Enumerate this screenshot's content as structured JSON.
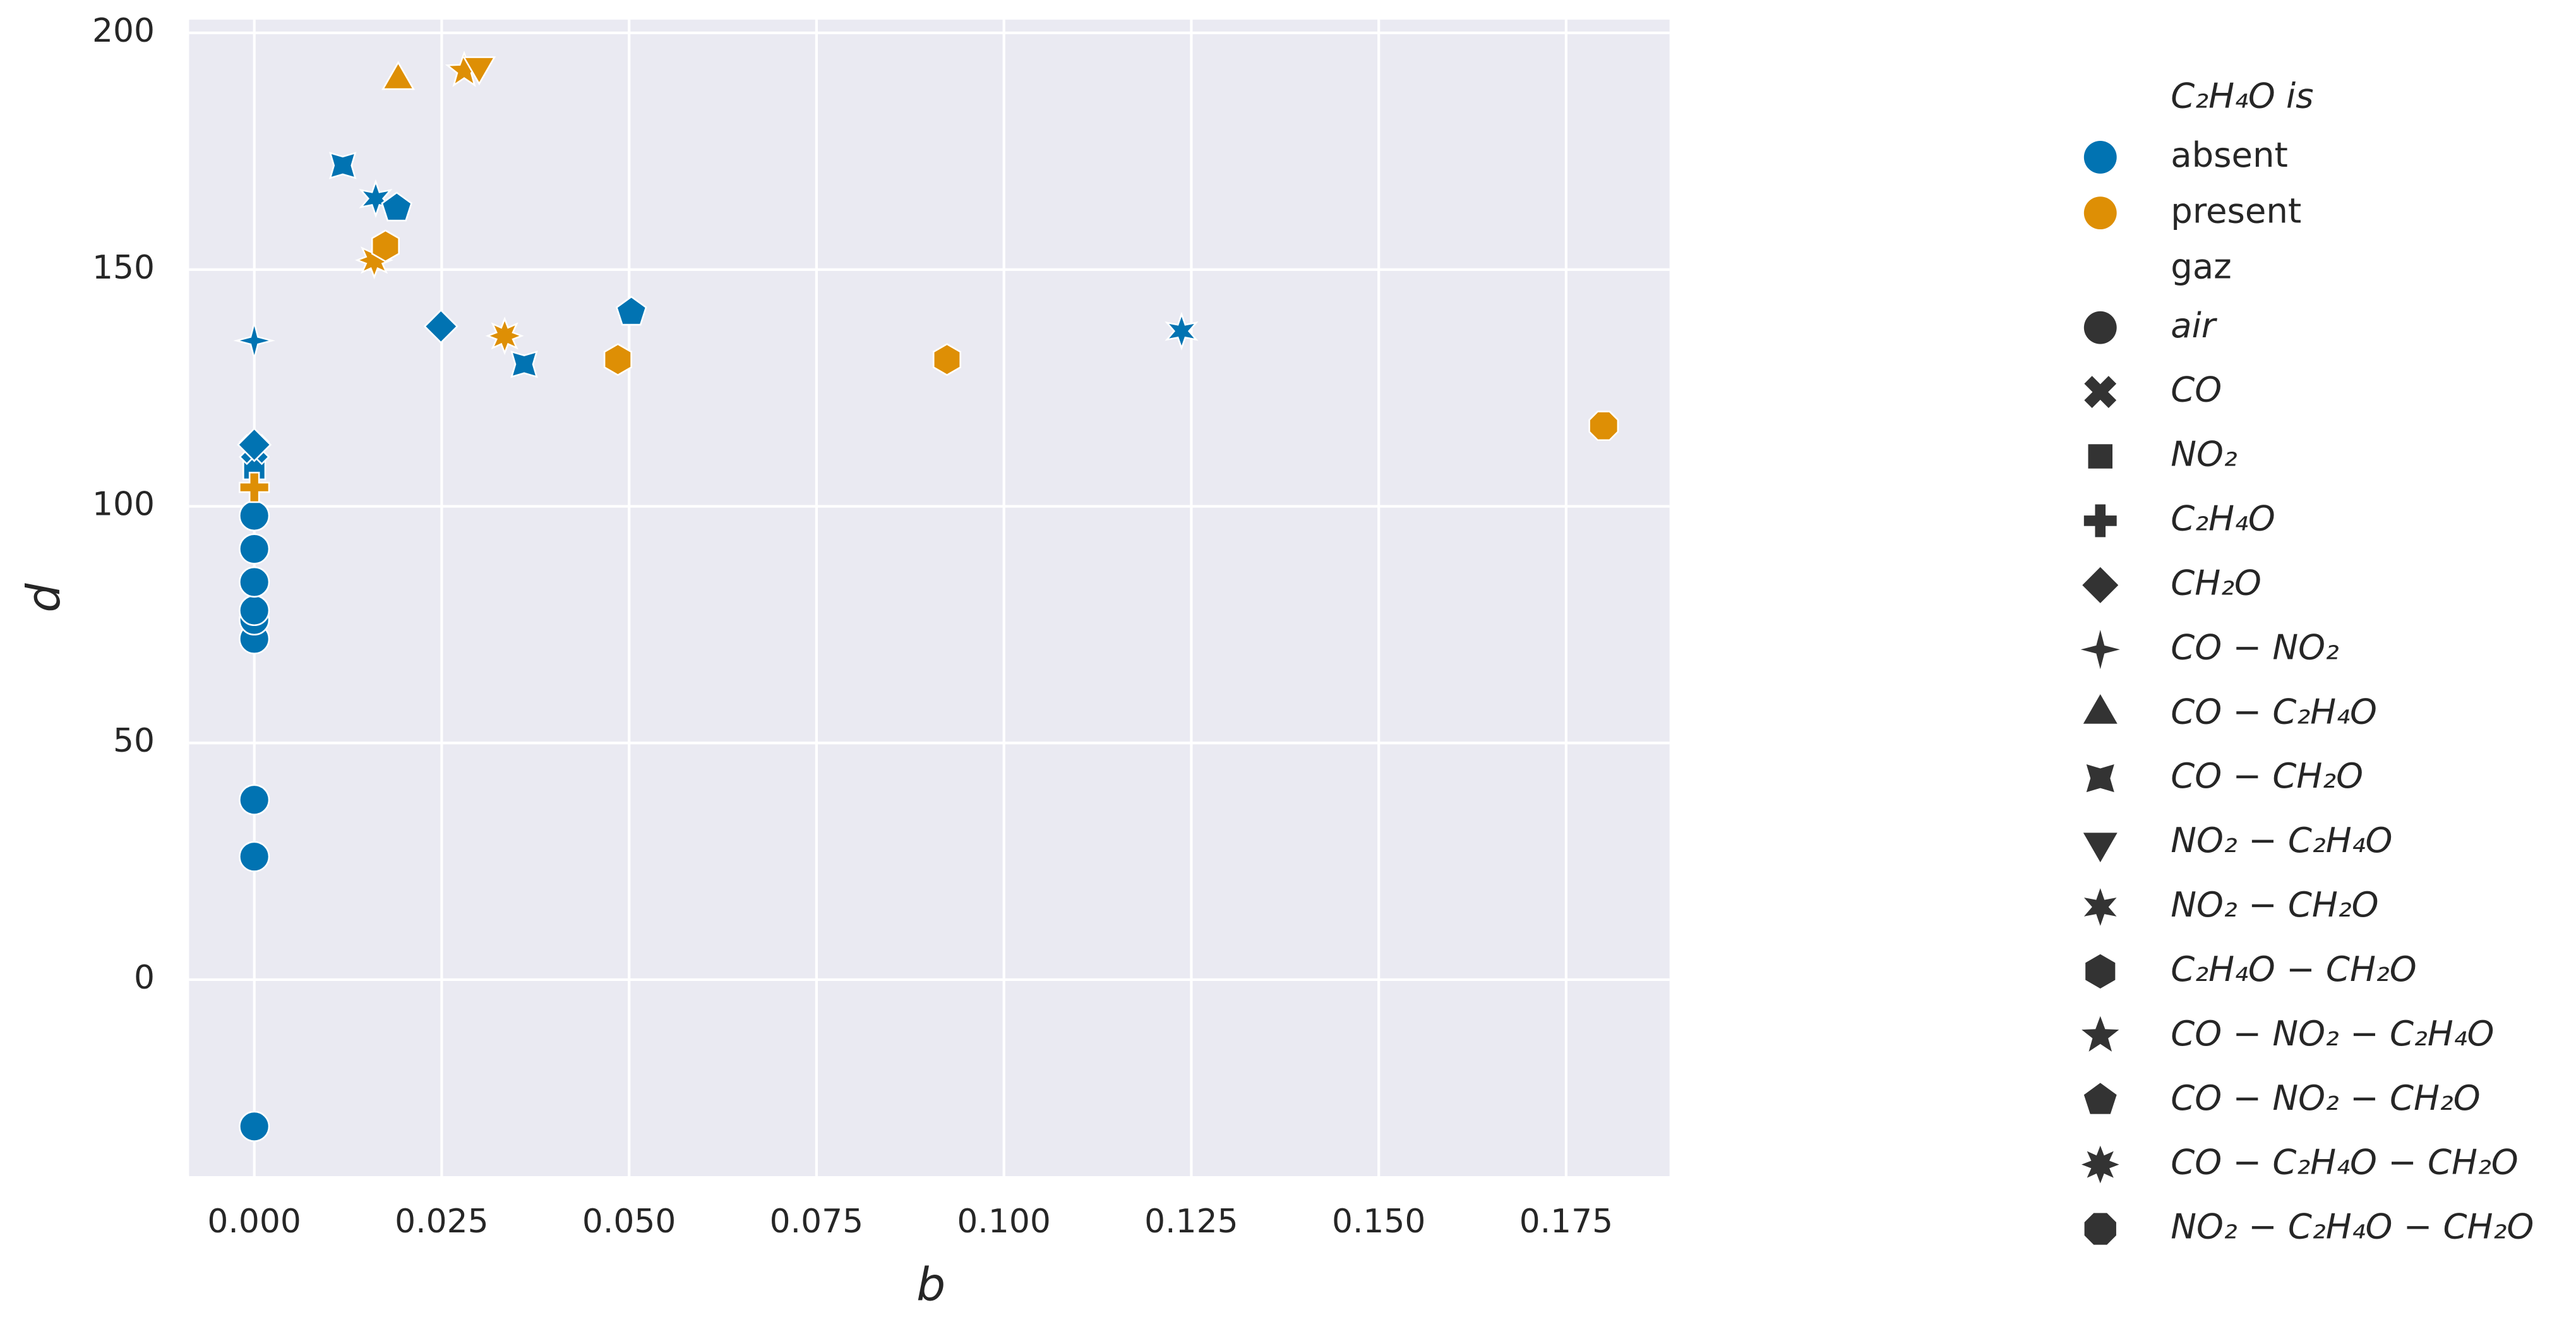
{
  "chart_data": {
    "type": "scatter",
    "x_label": "b",
    "y_label": "d",
    "xlim": [
      -0.0087,
      0.1888
    ],
    "ylim": [
      -41.5,
      202.8
    ],
    "xticks": [
      {
        "value": 0,
        "label": "0.000"
      },
      {
        "value": 0.025,
        "label": "0.025"
      },
      {
        "value": 0.05,
        "label": "0.050"
      },
      {
        "value": 0.075,
        "label": "0.075"
      },
      {
        "value": 0.1,
        "label": "0.100"
      },
      {
        "value": 0.125,
        "label": "0.125"
      },
      {
        "value": 0.15,
        "label": "0.150"
      },
      {
        "value": 0.175,
        "label": "0.175"
      }
    ],
    "yticks": [
      0,
      50,
      100,
      150,
      200
    ],
    "grid": true,
    "legend": {
      "position": "outside right",
      "hue_title": "C₂H₄O is",
      "style_title": "gaz",
      "styles": [
        "air",
        "CO",
        "NO₂",
        "C₂H₄O",
        "CH₂O",
        "CO − NO₂",
        "CO − C₂H₄O",
        "CO − CH₂O",
        "NO₂ − C₂H₄O",
        "NO₂ − CH₂O",
        "C₂H₄O − CH₂O",
        "CO − NO₂ − C₂H₄O",
        "CO − NO₂ − CH₂O",
        "CO − C₂H₄O − CH₂O",
        "NO₂ − C₂H₄O − CH₂O"
      ]
    },
    "series": [
      {
        "name": "absent",
        "color": "#0173b2",
        "x": [
          0,
          0,
          0,
          0,
          0,
          0,
          0,
          0,
          0,
          0,
          0,
          0,
          0,
          0.0118,
          0.0162,
          0.019,
          0.0249,
          0.036,
          0.0503,
          0.1237
        ],
        "values": [
          -31,
          26,
          38,
          72,
          76,
          78,
          84,
          91,
          98,
          108,
          112,
          113,
          135,
          172,
          165,
          163,
          138,
          130,
          141,
          137
        ],
        "gaz": [
          "air",
          "air",
          "air",
          "air",
          "air",
          "air",
          "air",
          "air",
          "air",
          "NO₂",
          "CO",
          "CH₂O",
          "CO − NO₂",
          "CO − CH₂O",
          "NO₂ − CH₂O",
          "CO − NO₂ − CH₂O",
          "CH₂O",
          "CO − CH₂O",
          "CO − NO₂ − CH₂O",
          "NO₂ − CH₂O"
        ]
      },
      {
        "name": "present",
        "color": "#de8f05",
        "x": [
          0,
          0.0192,
          0.028,
          0.03,
          0.016,
          0.0175,
          0.0334,
          0.0485,
          0.0924,
          0.18
        ],
        "values": [
          104,
          190,
          192,
          193,
          152,
          155,
          136,
          131,
          131,
          117
        ],
        "gaz": [
          "C₂H₄O",
          "CO − C₂H₄O",
          "CO − NO₂ − C₂H₄O",
          "NO₂ − C₂H₄O",
          "CO − C₂H₄O − CH₂O",
          "C₂H₄O − CH₂O",
          "CO − C₂H₄O − CH₂O",
          "C₂H₄O − CH₂O",
          "C₂H₄O − CH₂O",
          "NO₂ − C₂H₄O − CH₂O"
        ]
      }
    ]
  }
}
